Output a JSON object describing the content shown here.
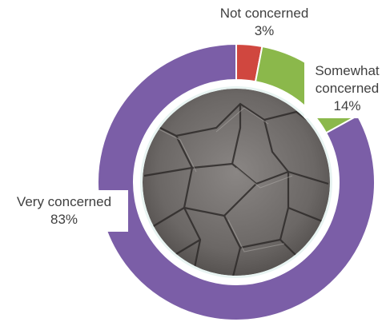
{
  "chart_data": {
    "type": "pie",
    "donut": true,
    "categories": [
      "Not concerned",
      "Somewhat concerned",
      "Very concerned"
    ],
    "values": [
      3,
      14,
      83
    ],
    "value_labels": [
      "3%",
      "14%",
      "83%"
    ],
    "colors": [
      "#d0473f",
      "#8bb84b",
      "#7b5ea7"
    ]
  }
}
